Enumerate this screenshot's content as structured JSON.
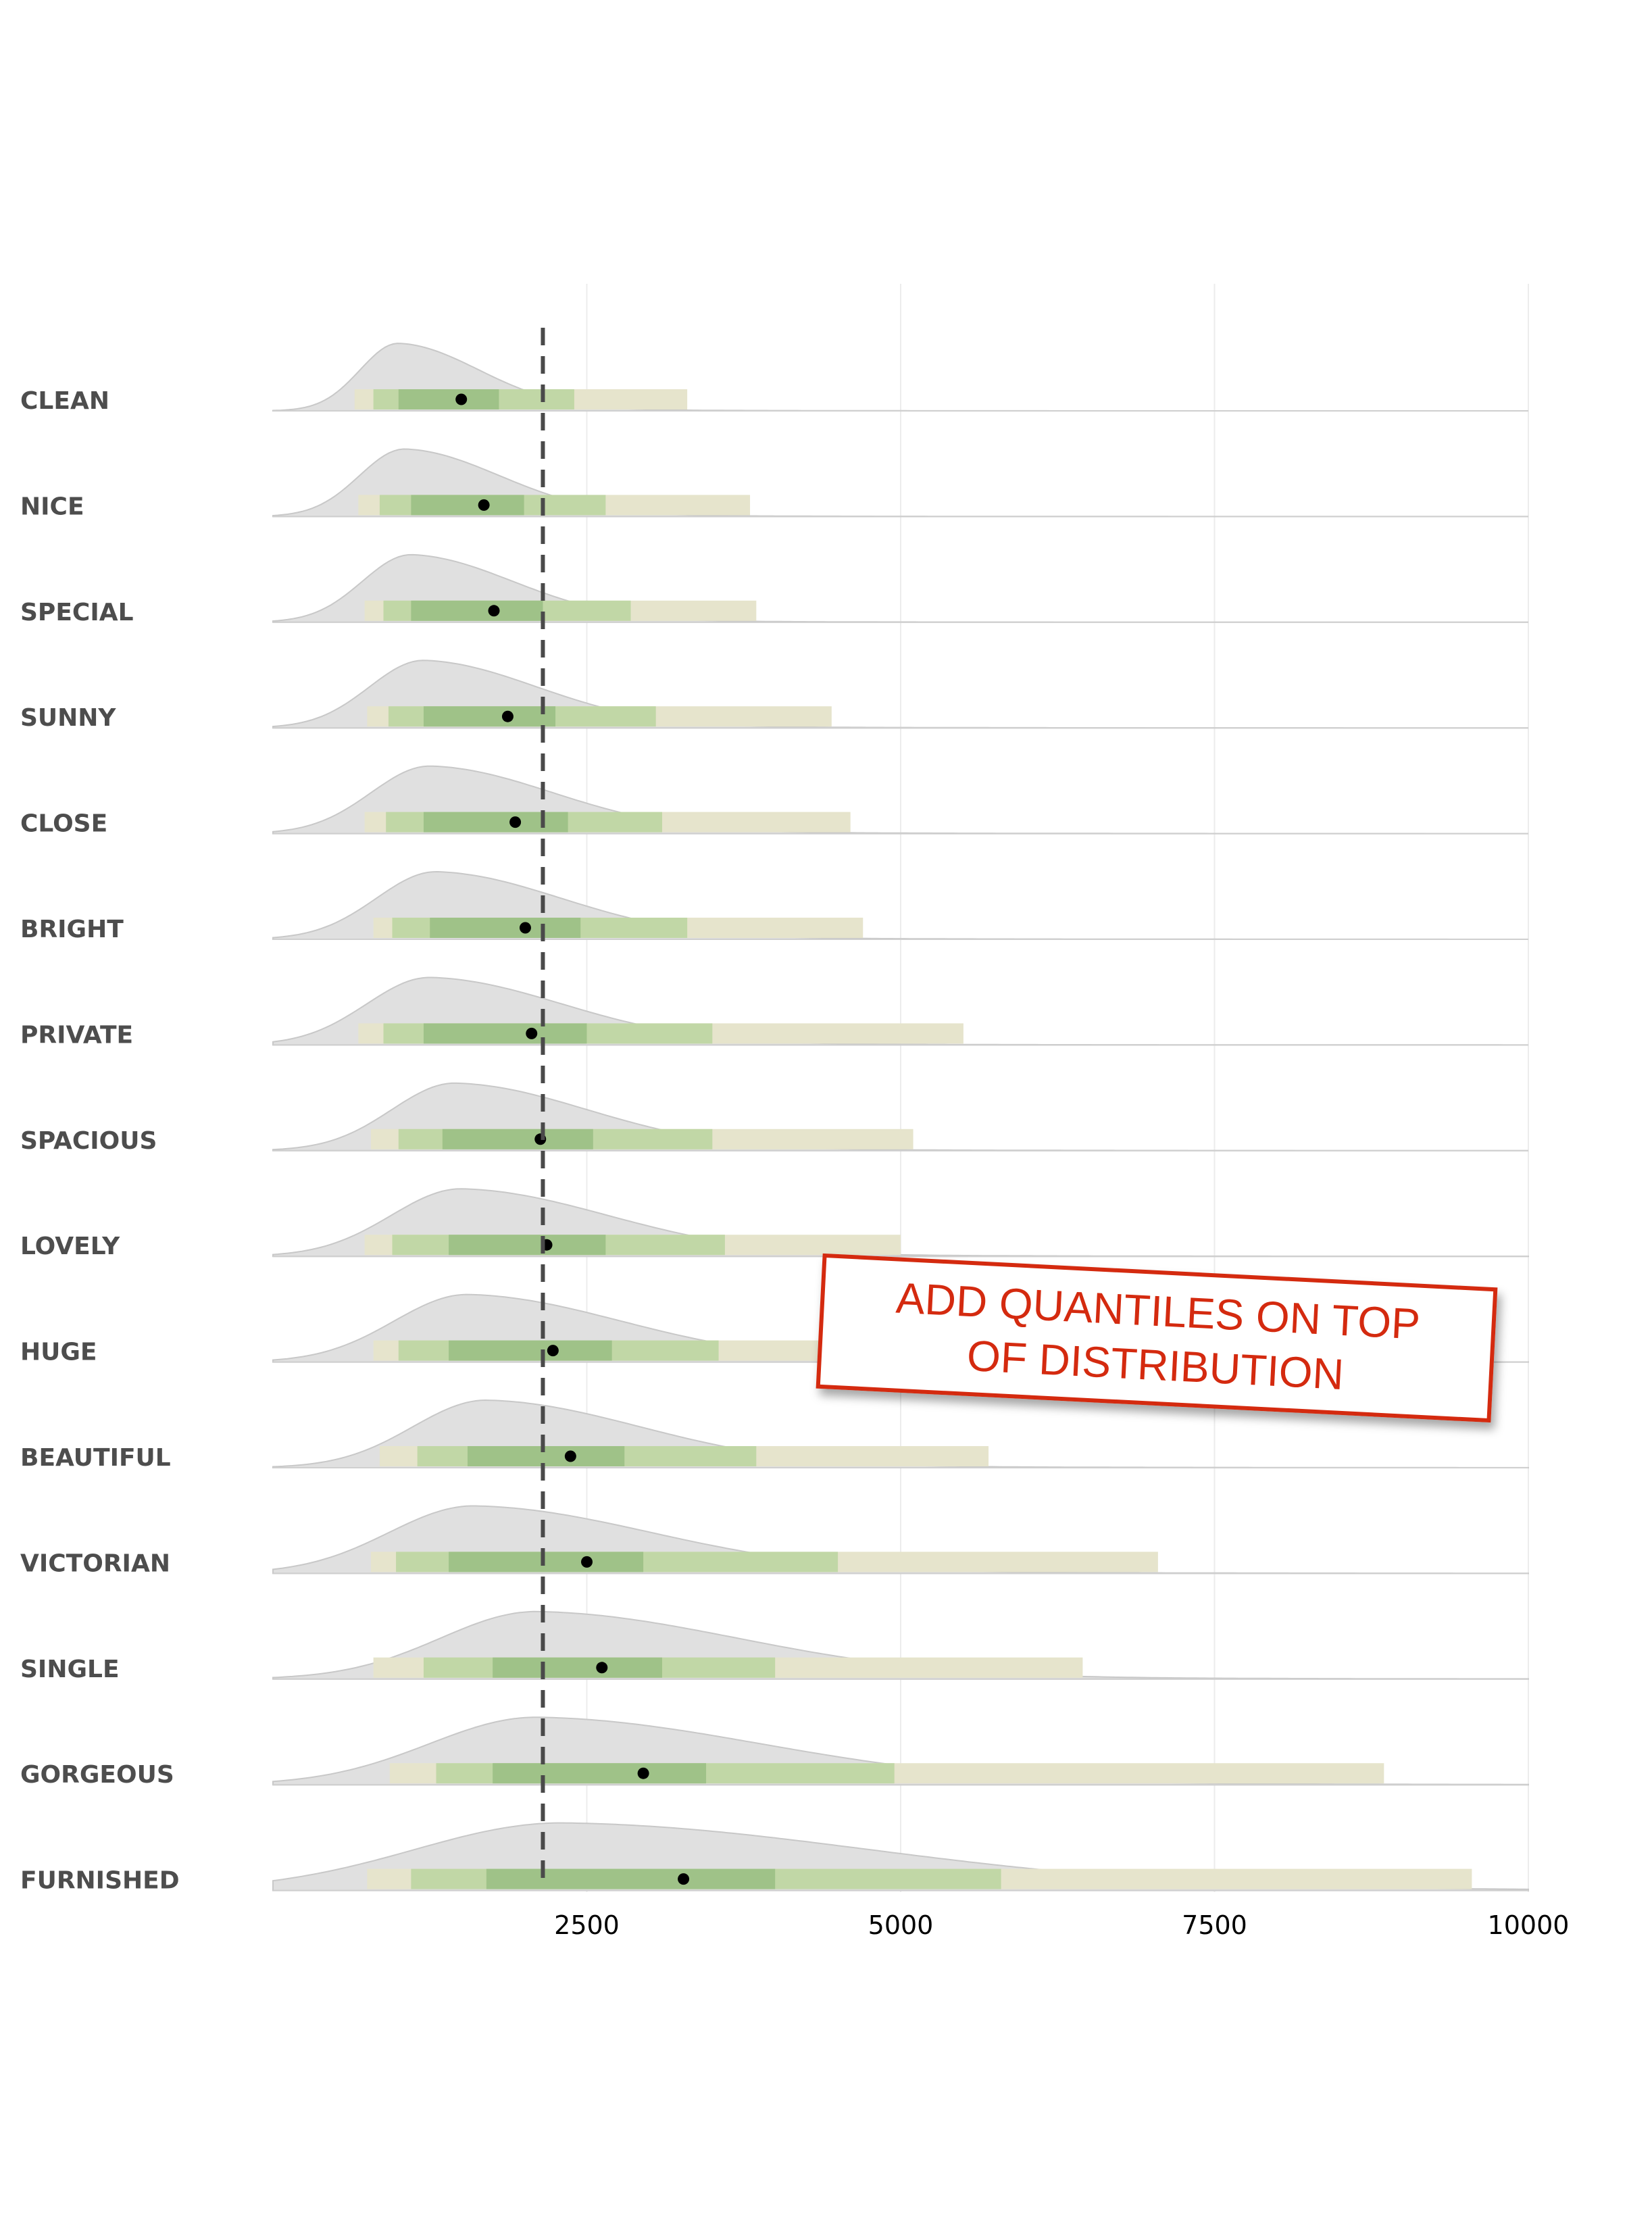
{
  "chart_data": {
    "type": "ridgeline-with-quantile-intervals",
    "title": "",
    "xlabel": "",
    "ylabel": "",
    "xlim": [
      0,
      10000
    ],
    "x_ticks": [
      2500,
      5000,
      7500,
      10000
    ],
    "grid": "vertical-major",
    "reference_line": {
      "x": 2150,
      "style": "dashed"
    },
    "interval_colors": {
      "outer": "#e6e4cc",
      "middle": "#c1d7a6",
      "inner": "#9fc288",
      "median_point": "#000000",
      "density_fill": "#e0e0e0",
      "density_stroke": "#c8c8c8"
    },
    "rows": [
      {
        "label": "CLEAN",
        "median": 1500,
        "inner": [
          1000,
          1800
        ],
        "middle": [
          800,
          2400
        ],
        "outer": [
          650,
          3300
        ],
        "density_peak": 1000,
        "density_width": 340,
        "density_tail": 8300
      },
      {
        "label": "NICE",
        "median": 1680,
        "inner": [
          1100,
          2000
        ],
        "middle": [
          850,
          2650
        ],
        "outer": [
          680,
          3800
        ],
        "density_peak": 1050,
        "density_width": 400,
        "density_tail": 10000
      },
      {
        "label": "SPECIAL",
        "median": 1760,
        "inner": [
          1100,
          2150
        ],
        "middle": [
          880,
          2850
        ],
        "outer": [
          730,
          3850
        ],
        "density_peak": 1100,
        "density_width": 430,
        "density_tail": 10000
      },
      {
        "label": "SUNNY",
        "median": 1870,
        "inner": [
          1200,
          2250
        ],
        "middle": [
          920,
          3050
        ],
        "outer": [
          750,
          4450
        ],
        "density_peak": 1200,
        "density_width": 480,
        "density_tail": 10000
      },
      {
        "label": "CLOSE",
        "median": 1930,
        "inner": [
          1200,
          2350
        ],
        "middle": [
          900,
          3100
        ],
        "outer": [
          730,
          4600
        ],
        "density_peak": 1250,
        "density_width": 520,
        "density_tail": 10000
      },
      {
        "label": "BRIGHT",
        "median": 2010,
        "inner": [
          1250,
          2450
        ],
        "middle": [
          950,
          3300
        ],
        "outer": [
          800,
          4700
        ],
        "density_peak": 1300,
        "density_width": 530,
        "density_tail": 10000
      },
      {
        "label": "PRIVATE",
        "median": 2060,
        "inner": [
          1200,
          2500
        ],
        "middle": [
          880,
          3500
        ],
        "outer": [
          680,
          5500
        ],
        "density_peak": 1250,
        "density_width": 560,
        "density_tail": 10000
      },
      {
        "label": "SPACIOUS",
        "median": 2130,
        "inner": [
          1350,
          2550
        ],
        "middle": [
          1000,
          3500
        ],
        "outer": [
          780,
          5100
        ],
        "density_peak": 1450,
        "density_width": 560,
        "density_tail": 10000
      },
      {
        "label": "LOVELY",
        "median": 2180,
        "inner": [
          1400,
          2650
        ],
        "middle": [
          950,
          3600
        ],
        "outer": [
          730,
          5000
        ],
        "density_peak": 1500,
        "density_width": 620,
        "density_tail": 10000
      },
      {
        "label": "HUGE",
        "median": 2230,
        "inner": [
          1400,
          2700
        ],
        "middle": [
          1000,
          3550
        ],
        "outer": [
          800,
          4600
        ],
        "density_peak": 1550,
        "density_width": 650,
        "density_tail": 10000
      },
      {
        "label": "BEAUTIFUL",
        "median": 2370,
        "inner": [
          1550,
          2800
        ],
        "middle": [
          1150,
          3850
        ],
        "outer": [
          850,
          5700
        ],
        "density_peak": 1700,
        "density_width": 650,
        "density_tail": 10000
      },
      {
        "label": "VICTORIAN",
        "median": 2500,
        "inner": [
          1400,
          2950
        ],
        "middle": [
          980,
          4500
        ],
        "outer": [
          780,
          7050
        ],
        "density_peak": 1600,
        "density_width": 750,
        "density_tail": 10000
      },
      {
        "label": "SINGLE",
        "median": 2620,
        "inner": [
          1750,
          3100
        ],
        "middle": [
          1200,
          4000
        ],
        "outer": [
          800,
          6450
        ],
        "density_peak": 2100,
        "density_width": 850,
        "density_tail": 10000
      },
      {
        "label": "GORGEOUS",
        "median": 2950,
        "inner": [
          1750,
          3450
        ],
        "middle": [
          1300,
          4950
        ],
        "outer": [
          930,
          8850
        ],
        "density_peak": 2100,
        "density_width": 950,
        "density_tail": 10000
      },
      {
        "label": "FURNISHED",
        "median": 3270,
        "inner": [
          1700,
          4000
        ],
        "middle": [
          1100,
          5800
        ],
        "outer": [
          750,
          9550
        ],
        "density_peak": 2300,
        "density_width": 1300,
        "density_tail": 10000
      }
    ]
  },
  "annotation": {
    "text": "ADD QUANTILES ON TOP\nOF DISTRIBUTION",
    "color": "#d42a0f"
  }
}
